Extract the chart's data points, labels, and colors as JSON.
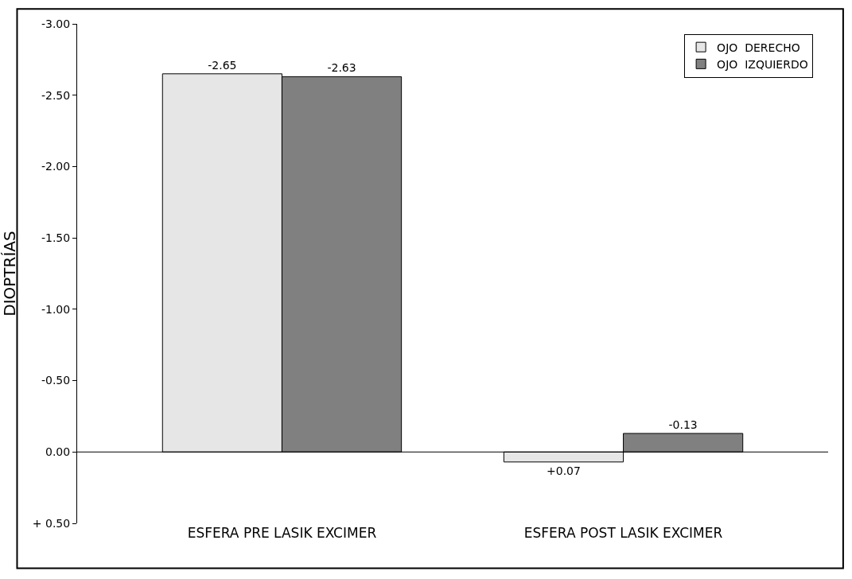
{
  "chart_data": {
    "type": "bar",
    "ylabel": "DIOPTRÍAS",
    "categories": [
      "ESFERA PRE LASIK EXCIMER",
      "ESFERA POST LASIK EXCIMER"
    ],
    "series": [
      {
        "name": "OJO  DERECHO",
        "color": "#e6e6e6",
        "values": [
          -2.65,
          0.07
        ],
        "value_labels": [
          "-2.65",
          "+0.07"
        ]
      },
      {
        "name": "OJO  IZQUIERDO",
        "color": "#808080",
        "values": [
          -2.63,
          -0.13
        ],
        "value_labels": [
          "-2.63",
          "-0.13"
        ]
      }
    ],
    "ylim": [
      0.5,
      -3.0
    ],
    "yticks": [
      {
        "value": -3.0,
        "label": "-3.00"
      },
      {
        "value": -2.5,
        "label": "-2.50"
      },
      {
        "value": -2.0,
        "label": "-2.00"
      },
      {
        "value": -1.5,
        "label": "-1.50"
      },
      {
        "value": -1.0,
        "label": "-1.00"
      },
      {
        "value": -0.5,
        "label": "-0.50"
      },
      {
        "value": 0.0,
        "label": "0.00"
      },
      {
        "value": 0.5,
        "label": "+ 0.50"
      }
    ],
    "ref_lines": [
      {
        "axis": "y",
        "value": 0.0,
        "color": "#000000"
      }
    ],
    "legend": "top right"
  }
}
